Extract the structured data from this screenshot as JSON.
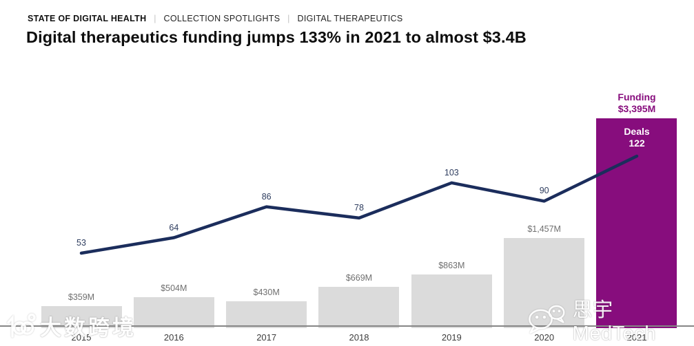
{
  "header": {
    "breadcrumb": [
      {
        "label": "STATE OF DIGITAL HEALTH"
      },
      {
        "label": "COLLECTION SPOTLIGHTS"
      },
      {
        "label": "DIGITAL THERAPEUTICS"
      }
    ],
    "separator": "|",
    "title": "Digital therapeutics funding jumps 133% in 2021 to almost $3.4B"
  },
  "chart_data": {
    "type": "bar",
    "subtype": "bar+line combo",
    "categories": [
      "2015",
      "2016",
      "2017",
      "2018",
      "2019",
      "2020",
      "2021"
    ],
    "series": [
      {
        "name": "Funding ($M)",
        "type": "bar",
        "values": [
          359,
          504,
          430,
          669,
          863,
          1457,
          3395
        ],
        "labels": [
          "$359M",
          "$504M",
          "$430M",
          "$669M",
          "$863M",
          "$1,457M",
          null
        ]
      },
      {
        "name": "Deals",
        "type": "line",
        "values": [
          53,
          64,
          86,
          78,
          103,
          90,
          122
        ],
        "labels": [
          "53",
          "64",
          "86",
          "78",
          "103",
          "90",
          null
        ]
      }
    ],
    "highlight": {
      "category": "2021",
      "funding_title": "Funding",
      "funding_value": "$3,395M",
      "deals_title": "Deals",
      "deals_value": "122"
    },
    "colors": {
      "bar": "#dbdbdb",
      "highlight_bar": "#870d7d",
      "line": "#1b2d5c",
      "bar_label": "#6f6f6f",
      "line_label": "#2d3c5e",
      "axis": "#858585",
      "highlight_text": "#870d7d"
    },
    "grid": false,
    "legend_position": "none",
    "ylim_bar": [
      0,
      3395
    ],
    "ylim_line_anchors": [
      53,
      122
    ]
  },
  "watermarks": {
    "left": {
      "logo": "100-logo",
      "text": "大数跨境"
    },
    "right": {
      "icon": "wechat-icon",
      "text": "思宇MedTech"
    }
  }
}
